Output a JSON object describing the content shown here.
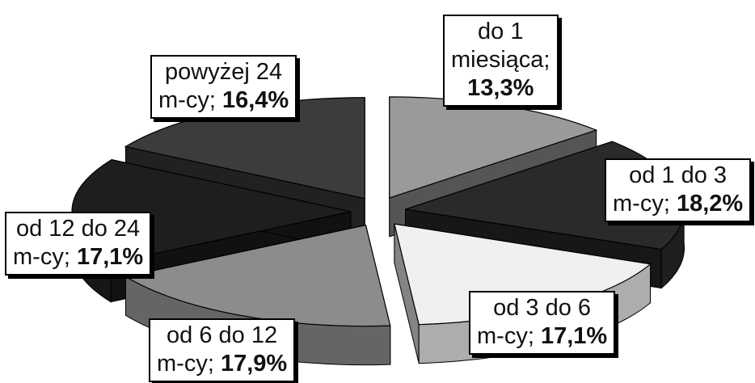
{
  "chart_data": {
    "type": "pie",
    "title": "",
    "slices": [
      {
        "line1": "do 1",
        "line2": "miesiąca;",
        "value_label": "13,3%",
        "value": 13.3,
        "color": "#9a9a9a"
      },
      {
        "line1": "od 1 do 3",
        "line2": "m-cy;",
        "value_label": "18,2%",
        "value": 18.2,
        "color": "#2a2a2a"
      },
      {
        "line1": "od 3 do 6",
        "line2": "m-cy;",
        "value_label": "17,1%",
        "value": 17.1,
        "color": "#f0f0f0"
      },
      {
        "line1": "od 6 do 12",
        "line2": "m-cy;",
        "value_label": "17,9%",
        "value": 17.9,
        "color": "#8c8c8c"
      },
      {
        "line1": "od 12 do 24",
        "line2": "m-cy;",
        "value_label": "17,1%",
        "value": 17.1,
        "color": "#1e1e1e"
      },
      {
        "line1": "powyżej 24",
        "line2": "m-cy;",
        "value_label": "16,4%",
        "value": 16.4,
        "color": "#3c3c3c"
      }
    ]
  }
}
